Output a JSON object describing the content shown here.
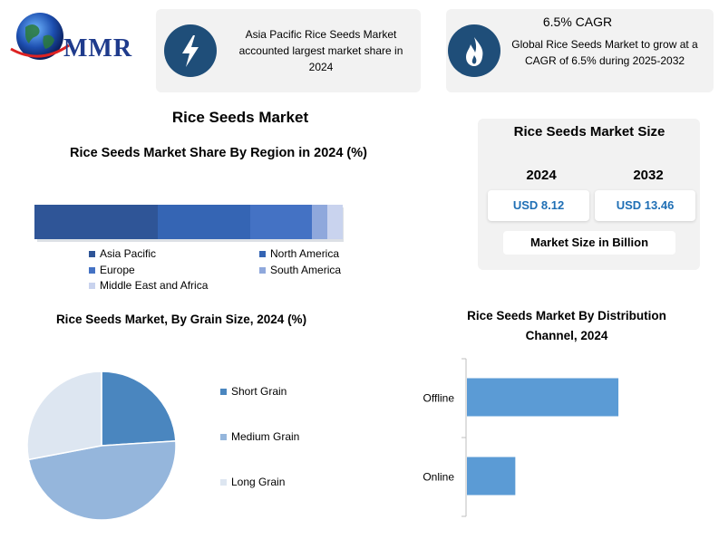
{
  "logo": {
    "text": "MMR"
  },
  "header_cards": [
    {
      "icon": "lightning-icon",
      "text": "Asia Pacific Rice Seeds Market accounted largest market share in 2024"
    },
    {
      "icon": "flame-icon",
      "title": "6.5% CAGR",
      "text": "Global Rice Seeds Market to grow at a CAGR of 6.5% during 2025-2032"
    }
  ],
  "main_title": "Rice Seeds Market",
  "market_size": {
    "title": "Rice Seeds Market Size",
    "years": [
      "2024",
      "2032"
    ],
    "values": [
      "USD 8.12",
      "USD 13.46"
    ],
    "unit_label": "Market Size in Billion"
  },
  "colors": {
    "accent_dark": "#1f4e79",
    "value_blue": "#1f6fb5"
  },
  "chart_data": [
    {
      "type": "bar",
      "orientation": "stacked-horizontal",
      "title": "Rice Seeds Market Share By Region in 2024 (%)",
      "categories": [
        "Asia Pacific",
        "North America",
        "Europe",
        "South America",
        "Middle East and Africa"
      ],
      "values": [
        40,
        30,
        20,
        5,
        5
      ],
      "colors": [
        "#2f5597",
        "#3565b4",
        "#4472c4",
        "#8fa8dc",
        "#c9d3ee"
      ],
      "legend": "bottom"
    },
    {
      "type": "pie",
      "title": "Rice Seeds Market, By Grain Size, 2024 (%)",
      "categories": [
        "Short Grain",
        "Medium Grain",
        "Long Grain"
      ],
      "values": [
        24,
        48,
        28
      ],
      "colors": [
        "#4a86bf",
        "#95b6dc",
        "#dde6f1"
      ],
      "legend": "right"
    },
    {
      "type": "bar",
      "orientation": "horizontal",
      "title": "Rice Seeds Market By Distribution Channel, 2024",
      "categories": [
        "Offline",
        "Online"
      ],
      "values": [
        72,
        23
      ],
      "xlim": [
        0,
        100
      ],
      "colors": [
        "#5b9bd5",
        "#5b9bd5"
      ],
      "grid": false
    }
  ]
}
